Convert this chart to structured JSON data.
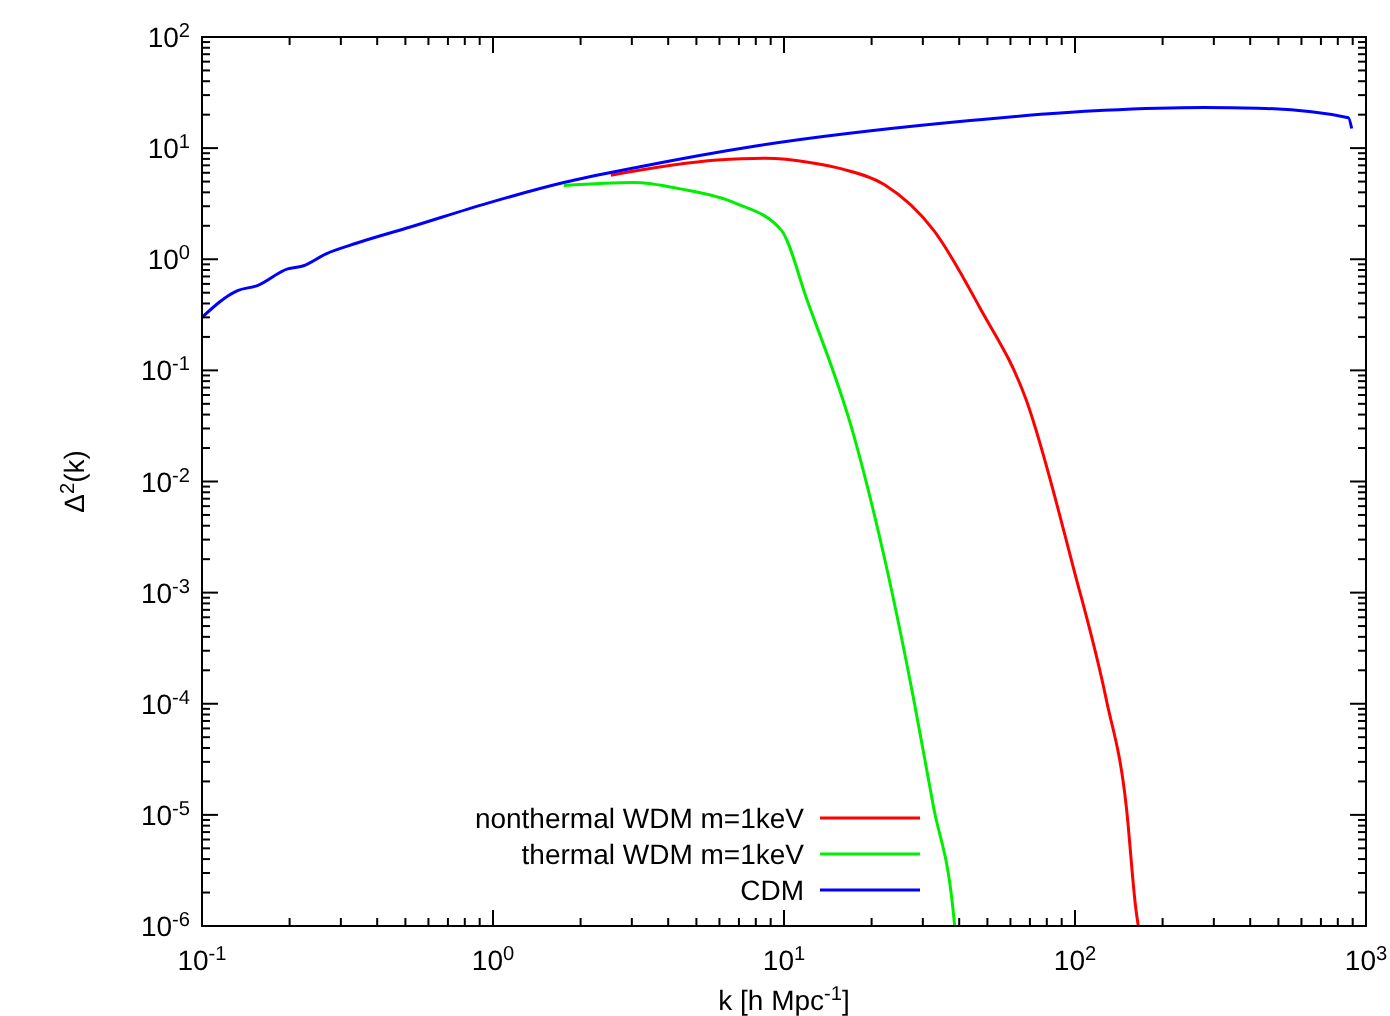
{
  "chart_data": {
    "type": "line",
    "xlabel": "k [h Mpc$^{-1}$]",
    "ylabel": "Δ$^{2}$(k)",
    "log": "xy",
    "legend": "bottom left",
    "grid": false,
    "xlim": [
      0.1,
      1000
    ],
    "ylim": [
      1e-06,
      100
    ],
    "xticks": [
      {
        "value": 0.1,
        "label": "10$^{-1}$"
      },
      {
        "value": 1,
        "label": "10$^{0}$"
      },
      {
        "value": 10,
        "label": "10$^{1}$"
      },
      {
        "value": 100,
        "label": "10$^{2}$"
      },
      {
        "value": 1000,
        "label": "10$^{3}$"
      }
    ],
    "yticks": [
      {
        "value": 1e-06,
        "label": "10$^{-6}$"
      },
      {
        "value": 1e-05,
        "label": "10$^{-5}$"
      },
      {
        "value": 0.0001,
        "label": "10$^{-4}$"
      },
      {
        "value": 0.001,
        "label": "10$^{-3}$"
      },
      {
        "value": 0.01,
        "label": "10$^{-2}$"
      },
      {
        "value": 0.1,
        "label": "10$^{-1}$"
      },
      {
        "value": 1,
        "label": "10$^{0}$"
      },
      {
        "value": 10,
        "label": "10$^{1}$"
      },
      {
        "value": 100,
        "label": "10$^{2}$"
      }
    ],
    "series": [
      {
        "name": "nonthermal WDM m=1keV",
        "color": "#ff0000",
        "x": [
          2.54,
          5.9,
          8.6,
          12.4,
          15.8,
          22.1,
          32.8,
          47,
          68,
          98.6,
          128,
          150,
          162,
          165
        ],
        "values": [
          5.7,
          7.8,
          8.1,
          7.4,
          6.5,
          4.7,
          1.8,
          0.37,
          0.054,
          0.0017,
          0.00011,
          1.2e-05,
          1.4e-06,
          1e-06
        ]
      },
      {
        "name": "thermal WDM m=1keV",
        "color": "#00ee00",
        "x": [
          1.75,
          3.05,
          4.4,
          6.8,
          9.8,
          12,
          17.3,
          22.5,
          27.9,
          32.6,
          38.1,
          38.6
        ],
        "values": [
          4.6,
          4.9,
          4.3,
          3.2,
          1.82,
          0.43,
          0.027,
          0.0017,
          0.00011,
          1.2e-05,
          1.4e-06,
          1e-06
        ]
      },
      {
        "name": "CDM",
        "color": "#0000ff",
        "x": [
          0.1,
          0.132,
          0.155,
          0.197,
          0.222,
          0.267,
          0.341,
          0.52,
          0.96,
          1.75,
          3.2,
          8.1,
          37,
          126,
          277,
          424,
          870,
          893
        ],
        "values": [
          0.3,
          0.52,
          0.58,
          0.82,
          0.87,
          1.12,
          1.4,
          1.95,
          3.2,
          4.9,
          6.8,
          10.5,
          17,
          21.9,
          23.2,
          22.9,
          18.8,
          15
        ]
      }
    ]
  }
}
